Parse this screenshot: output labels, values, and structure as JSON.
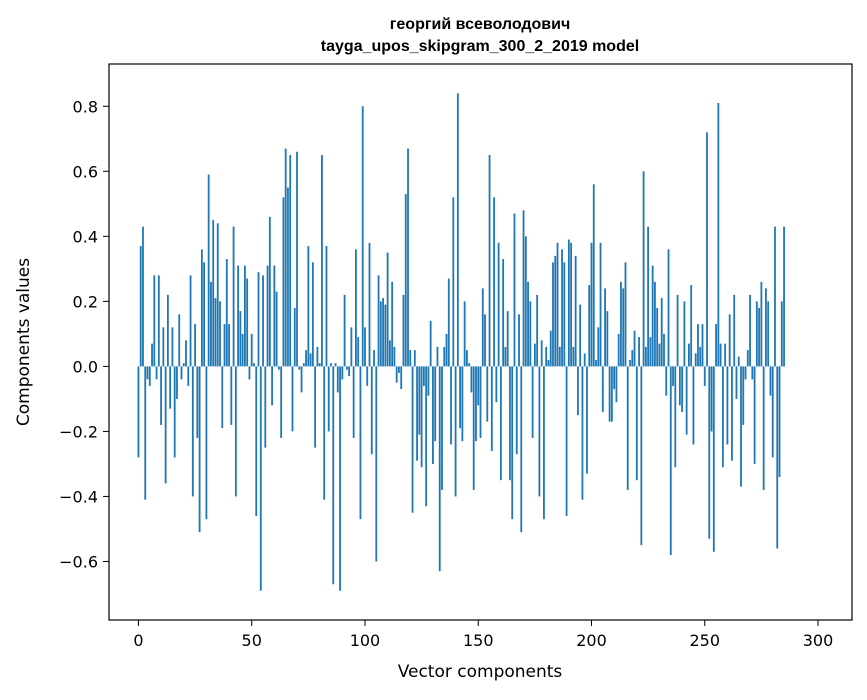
{
  "chart_data": {
    "type": "bar",
    "title": "георгий всеволодович",
    "subtitle": "tayga_upos_skipgram_300_2_2019 model",
    "xlabel": "Vector components",
    "ylabel": "Components values",
    "xlim": [
      -13,
      315
    ],
    "ylim": [
      -0.78,
      0.93
    ],
    "xticks": [
      0,
      50,
      100,
      150,
      200,
      250,
      300
    ],
    "xtick_labels": [
      "0",
      "50",
      "100",
      "150",
      "200",
      "250",
      "300"
    ],
    "yticks": [
      -0.6,
      -0.4,
      -0.2,
      0.0,
      0.2,
      0.4,
      0.6,
      0.8
    ],
    "ytick_labels": [
      "−0.6",
      "−0.4",
      "−0.2",
      "0.0",
      "0.2",
      "0.4",
      "0.6",
      "0.8"
    ],
    "grid": false,
    "bar_color": "#1f77b4",
    "series": [
      {
        "name": "георгий всеволодович",
        "values": [
          -0.28,
          0.37,
          0.43,
          -0.41,
          -0.04,
          -0.06,
          0.07,
          0.28,
          -0.04,
          0.28,
          -0.18,
          0.12,
          -0.36,
          0.22,
          -0.13,
          0.12,
          -0.28,
          -0.1,
          0.16,
          -0.04,
          0.01,
          0.08,
          -0.06,
          0.28,
          -0.4,
          0.13,
          -0.22,
          -0.51,
          0.36,
          0.32,
          -0.47,
          0.59,
          0.26,
          0.45,
          0.21,
          0.44,
          0.2,
          -0.19,
          0.13,
          0.33,
          0.13,
          -0.18,
          0.43,
          -0.4,
          0.31,
          0.17,
          0.1,
          0.31,
          0.27,
          -0.04,
          0.1,
          0.01,
          -0.46,
          0.29,
          -0.69,
          0.28,
          -0.25,
          0.31,
          0.46,
          -0.12,
          0.31,
          0.23,
          -0.01,
          -0.22,
          0.52,
          0.67,
          0.55,
          0.65,
          -0.2,
          0.18,
          0.66,
          -0.01,
          -0.08,
          0.01,
          0.05,
          0.37,
          0.04,
          0.32,
          -0.25,
          0.06,
          0.01,
          0.65,
          -0.41,
          0.37,
          -0.2,
          0.01,
          -0.67,
          0.01,
          -0.08,
          -0.69,
          -0.04,
          0.22,
          -0.01,
          -0.03,
          0.12,
          -0.22,
          0.36,
          0.09,
          -0.47,
          0.8,
          0.12,
          -0.06,
          0.38,
          -0.27,
          0.05,
          -0.6,
          0.28,
          0.2,
          0.21,
          0.19,
          0.35,
          0.08,
          0.26,
          0.06,
          -0.05,
          -0.02,
          -0.07,
          0.22,
          0.53,
          0.67,
          0.05,
          -0.45,
          0.05,
          -0.29,
          -0.21,
          -0.31,
          -0.06,
          -0.43,
          -0.09,
          0.14,
          -0.3,
          -0.23,
          0.06,
          -0.63,
          -0.38,
          0.06,
          0.1,
          0.27,
          -0.24,
          0.52,
          -0.4,
          0.84,
          -0.19,
          -0.23,
          0.2,
          0.05,
          0.01,
          -0.08,
          -0.38,
          -0.23,
          -0.12,
          -0.22,
          0.24,
          0.16,
          -0.17,
          0.65,
          -0.26,
          0.52,
          -0.11,
          0.38,
          -0.35,
          0.33,
          0.06,
          0.17,
          -0.35,
          -0.47,
          0.47,
          -0.27,
          0.16,
          -0.51,
          0.48,
          0.4,
          0.26,
          0.2,
          -0.22,
          0.07,
          0.22,
          -0.4,
          0.08,
          -0.47,
          0.06,
          0.02,
          0.11,
          0.32,
          0.34,
          0.38,
          0.06,
          0.36,
          0.32,
          -0.46,
          0.39,
          0.38,
          0.06,
          0.34,
          -0.15,
          0.19,
          -0.41,
          0.04,
          -0.33,
          0.25,
          0.38,
          0.56,
          0.02,
          0.12,
          0.38,
          -0.14,
          0.24,
          0.17,
          -0.17,
          -0.17,
          -0.07,
          -0.11,
          0.1,
          0.26,
          0.24,
          0.32,
          -0.38,
          0.02,
          0.05,
          0.11,
          -0.35,
          0.09,
          -0.55,
          0.6,
          0.06,
          0.43,
          0.09,
          0.31,
          0.26,
          0.18,
          0.07,
          0.21,
          0.1,
          -0.09,
          0.36,
          -0.58,
          -0.06,
          -0.31,
          0.22,
          -0.12,
          -0.14,
          0.2,
          -0.21,
          0.07,
          0.25,
          -0.24,
          0.04,
          0.13,
          0.06,
          0.13,
          -0.06,
          0.72,
          -0.53,
          -0.2,
          -0.57,
          0.13,
          0.81,
          0.07,
          -0.31,
          0.07,
          -0.24,
          0.16,
          -0.29,
          0.22,
          -0.1,
          0.03,
          -0.37,
          -0.18,
          -0.04,
          0.05,
          0.22,
          -0.04,
          -0.3,
          0.2,
          0.18,
          0.26,
          -0.38,
          0.24,
          0.2,
          -0.09,
          -0.28,
          0.43,
          -0.56,
          -0.34,
          0.2,
          0.43
        ]
      }
    ]
  }
}
